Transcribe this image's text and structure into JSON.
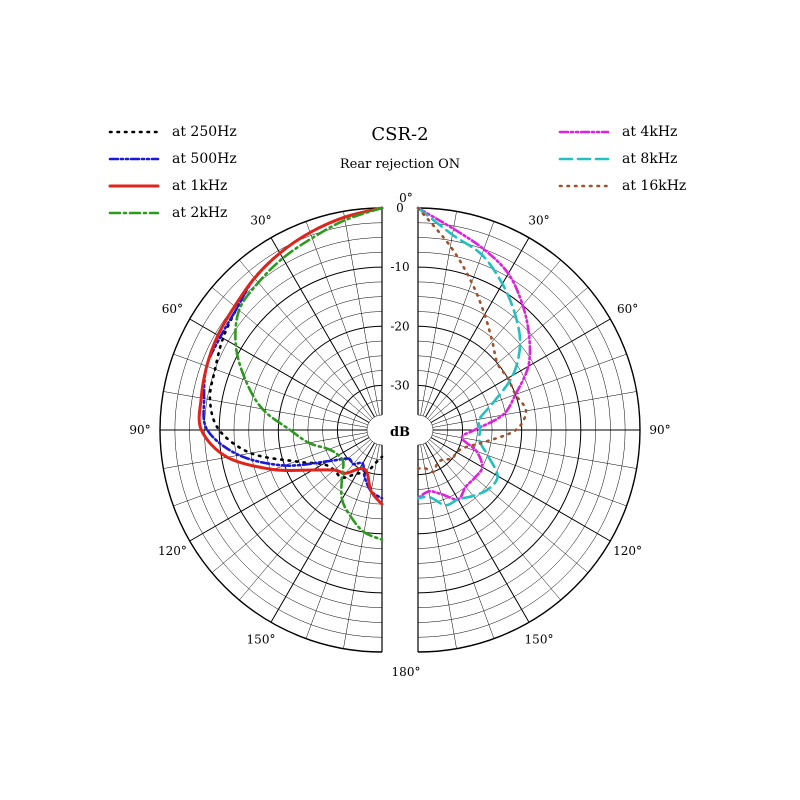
{
  "chart_data": {
    "type": "polar",
    "title": "CSR-2",
    "subtitle": "Rear rejection ON",
    "center_label": "dB",
    "angle_ticks": [
      "0°",
      "30°",
      "60°",
      "90°",
      "120°",
      "150°",
      "180°"
    ],
    "angle_tick_values": [
      0,
      30,
      60,
      90,
      120,
      150,
      180
    ],
    "db_ticks": [
      "0",
      "-10",
      "-20",
      "-30"
    ],
    "db_tick_values": [
      0,
      -10,
      -20,
      -30
    ],
    "rlim": [
      -35,
      0
    ],
    "minor_step_db": 2.5,
    "angle_step_deg": 10,
    "legend_left": [
      "at 250Hz",
      "at 500Hz",
      "at 1kHz",
      "at 2kHz"
    ],
    "legend_right": [
      "at 4kHz",
      "at 8kHz",
      "at 16kHz"
    ],
    "series": [
      {
        "name": "at 250Hz",
        "side": "left",
        "color": "#000000",
        "style": "dotted",
        "points": [
          [
            0,
            0
          ],
          [
            10,
            -1
          ],
          [
            20,
            -2
          ],
          [
            30,
            -3
          ],
          [
            40,
            -4
          ],
          [
            50,
            -5.5
          ],
          [
            60,
            -6.5
          ],
          [
            70,
            -7.5
          ],
          [
            80,
            -8
          ],
          [
            90,
            -10
          ],
          [
            100,
            -15
          ],
          [
            110,
            -22
          ],
          [
            120,
            -26
          ],
          [
            130,
            -27
          ],
          [
            140,
            -27
          ],
          [
            150,
            -29
          ],
          [
            160,
            -30
          ],
          [
            170,
            -32
          ],
          [
            180,
            -33
          ]
        ]
      },
      {
        "name": "at 500Hz",
        "side": "left",
        "color": "#1a1ad6",
        "style": "dashdotdot",
        "points": [
          [
            0,
            0
          ],
          [
            10,
            -1
          ],
          [
            20,
            -2
          ],
          [
            30,
            -3
          ],
          [
            40,
            -4
          ],
          [
            50,
            -5.5
          ],
          [
            60,
            -6
          ],
          [
            70,
            -6
          ],
          [
            80,
            -7
          ],
          [
            90,
            -8
          ],
          [
            100,
            -13
          ],
          [
            110,
            -20
          ],
          [
            120,
            -27
          ],
          [
            130,
            -30
          ],
          [
            140,
            -30
          ],
          [
            150,
            -31
          ],
          [
            160,
            -29
          ],
          [
            170,
            -27
          ],
          [
            180,
            -26
          ]
        ]
      },
      {
        "name": "at 1kHz",
        "side": "left",
        "color": "#e2231a",
        "style": "solid",
        "points": [
          [
            0,
            0
          ],
          [
            10,
            -1
          ],
          [
            20,
            -2
          ],
          [
            30,
            -3
          ],
          [
            40,
            -4
          ],
          [
            50,
            -5
          ],
          [
            60,
            -5.5
          ],
          [
            70,
            -6
          ],
          [
            80,
            -6.5
          ],
          [
            90,
            -7
          ],
          [
            100,
            -11
          ],
          [
            110,
            -18
          ],
          [
            120,
            -24
          ],
          [
            130,
            -27
          ],
          [
            140,
            -28
          ],
          [
            150,
            -30
          ],
          [
            160,
            -30
          ],
          [
            170,
            -27
          ],
          [
            180,
            -25
          ]
        ]
      },
      {
        "name": "at 2kHz",
        "side": "left",
        "color": "#2c9a1e",
        "style": "dashdot",
        "points": [
          [
            0,
            0
          ],
          [
            10,
            -1.5
          ],
          [
            20,
            -3
          ],
          [
            30,
            -4
          ],
          [
            40,
            -5
          ],
          [
            50,
            -6
          ],
          [
            60,
            -9
          ],
          [
            70,
            -13
          ],
          [
            80,
            -17
          ],
          [
            90,
            -22
          ],
          [
            100,
            -25
          ],
          [
            110,
            -28
          ],
          [
            120,
            -29
          ],
          [
            130,
            -29
          ],
          [
            140,
            -27
          ],
          [
            150,
            -24
          ],
          [
            160,
            -22
          ],
          [
            170,
            -20
          ],
          [
            180,
            -19
          ]
        ]
      },
      {
        "name": "at 4kHz",
        "side": "right",
        "color": "#e020e0",
        "style": "dashdotdot",
        "points": [
          [
            0,
            0
          ],
          [
            10,
            -3
          ],
          [
            20,
            -5
          ],
          [
            30,
            -7
          ],
          [
            40,
            -10
          ],
          [
            50,
            -13
          ],
          [
            60,
            -16
          ],
          [
            70,
            -20
          ],
          [
            80,
            -23
          ],
          [
            90,
            -28
          ],
          [
            100,
            -30
          ],
          [
            110,
            -27
          ],
          [
            120,
            -25
          ],
          [
            130,
            -25
          ],
          [
            140,
            -25
          ],
          [
            150,
            -24
          ],
          [
            160,
            -26
          ],
          [
            170,
            -27
          ],
          [
            180,
            -26
          ]
        ]
      },
      {
        "name": "at 8kHz",
        "side": "right",
        "color": "#22c0c0",
        "style": "dashed",
        "points": [
          [
            0,
            0
          ],
          [
            10,
            -4
          ],
          [
            20,
            -6
          ],
          [
            30,
            -9
          ],
          [
            40,
            -12
          ],
          [
            50,
            -15
          ],
          [
            60,
            -19
          ],
          [
            70,
            -24
          ],
          [
            80,
            -27
          ],
          [
            90,
            -27
          ],
          [
            100,
            -27
          ],
          [
            110,
            -25
          ],
          [
            120,
            -22
          ],
          [
            130,
            -22
          ],
          [
            140,
            -23
          ],
          [
            150,
            -24
          ],
          [
            160,
            -24
          ],
          [
            170,
            -26
          ],
          [
            180,
            -26
          ]
        ]
      },
      {
        "name": "at 16kHz",
        "side": "right",
        "color": "#a0522d",
        "style": "dotted",
        "points": [
          [
            0,
            0
          ],
          [
            10,
            -6
          ],
          [
            20,
            -11
          ],
          [
            30,
            -15
          ],
          [
            40,
            -18
          ],
          [
            50,
            -20
          ],
          [
            60,
            -20
          ],
          [
            70,
            -20
          ],
          [
            80,
            -19
          ],
          [
            90,
            -21
          ],
          [
            100,
            -26
          ],
          [
            110,
            -29
          ],
          [
            120,
            -30
          ],
          [
            130,
            -30
          ],
          [
            140,
            -31
          ],
          [
            150,
            -31
          ],
          [
            160,
            -30
          ],
          [
            170,
            -31
          ],
          [
            180,
            -31
          ]
        ]
      }
    ]
  }
}
